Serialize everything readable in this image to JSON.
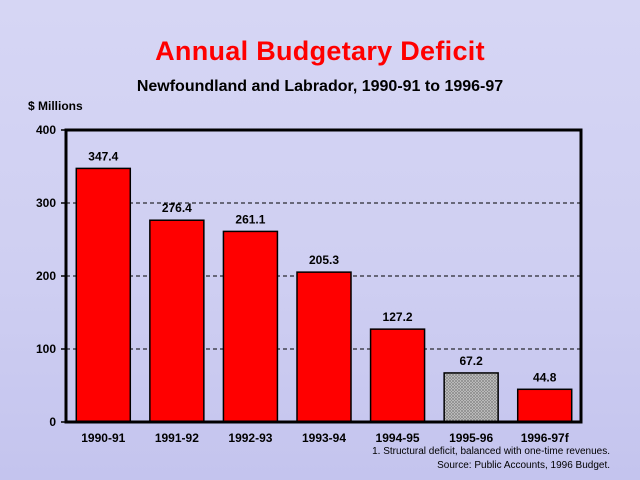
{
  "chart_data": {
    "type": "bar",
    "title": "Annual Budgetary Deficit",
    "subtitle": "Newfoundland and Labrador, 1990-91 to 1996-97",
    "ylabel": "$ Millions",
    "xlabel": "",
    "ylim": [
      0,
      400
    ],
    "yticks": [
      0,
      100,
      200,
      300,
      400
    ],
    "grid": true,
    "categories": [
      "1990-91",
      "1991-92",
      "1992-93",
      "1993-94",
      "1994-95",
      "1995-96",
      "1996-97f"
    ],
    "values": [
      347.4,
      276.4,
      261.1,
      205.3,
      127.2,
      67.2,
      44.8
    ],
    "value_labels": [
      "347.4",
      "276.4",
      "261.1",
      "205.3",
      "127.2",
      "67.2",
      "44.8"
    ],
    "bar_styles": [
      "solid",
      "solid",
      "solid",
      "solid",
      "solid",
      "hatched",
      "solid"
    ],
    "colors": {
      "bar": "#ff0000",
      "structural_bar": "#c8c8c8",
      "title": "#ff0000"
    }
  },
  "footnotes": {
    "note1": "1.  Structural deficit, balanced with one-time revenues.",
    "source": "Source: Public Accounts, 1996 Budget."
  }
}
